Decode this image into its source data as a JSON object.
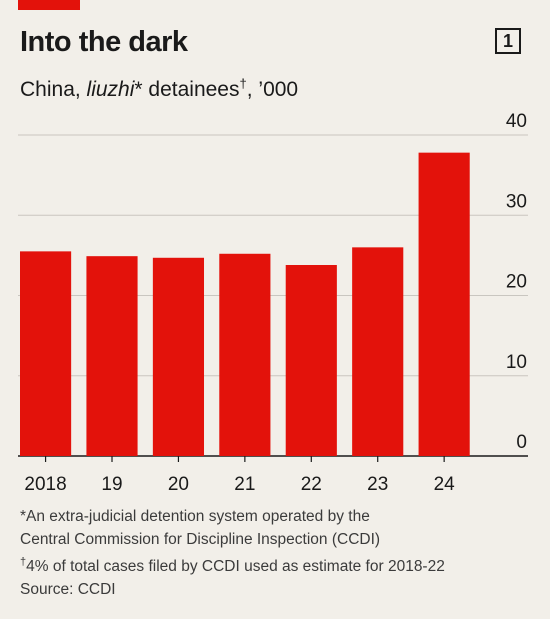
{
  "header": {
    "title": "Into the dark",
    "badge": "1",
    "subtitle_prefix": "China, ",
    "subtitle_term": "liuzhi",
    "subtitle_middle": "* detainees",
    "subtitle_dagger": "†",
    "subtitle_suffix": ", ’000"
  },
  "chart_data": {
    "type": "bar",
    "categories": [
      "2018",
      "19",
      "20",
      "21",
      "22",
      "23",
      "24"
    ],
    "values": [
      25.5,
      24.9,
      24.7,
      25.2,
      23.8,
      26.0,
      37.8
    ],
    "ylim": [
      0,
      40
    ],
    "yticks": [
      0,
      10,
      20,
      30,
      40
    ],
    "grid": true,
    "bar_color": "#e3120b"
  },
  "footnotes": {
    "line1": "*An extra-judicial detention system operated by the",
    "line2": "Central Commission for Discipline Inspection (CCDI)",
    "line3_mark": "†",
    "line3": "4% of total cases filed by CCDI used as estimate for 2018-22",
    "source": "Source: CCDI"
  }
}
